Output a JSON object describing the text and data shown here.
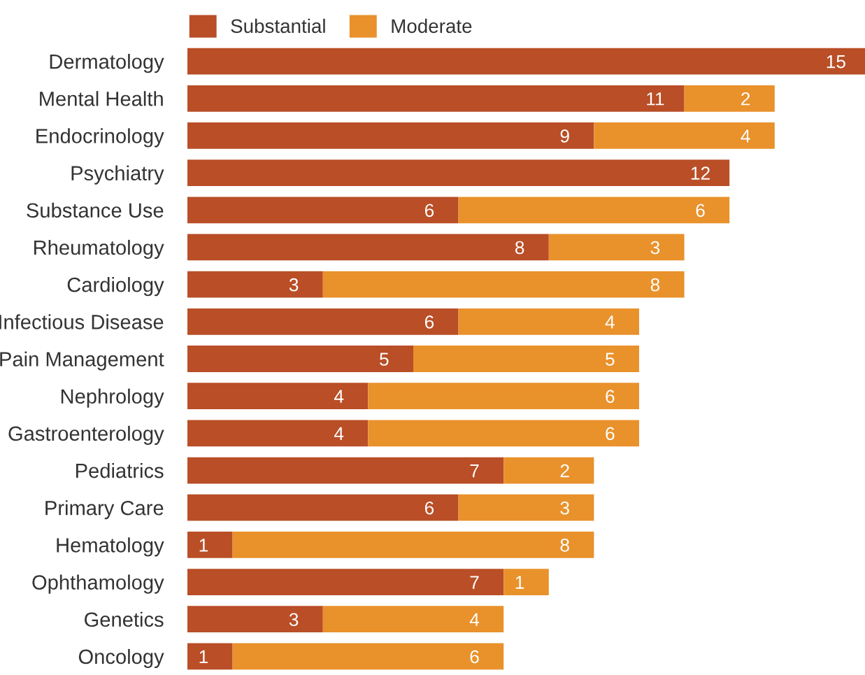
{
  "chart_data": {
    "type": "bar",
    "orientation": "horizontal",
    "stacked": true,
    "data_labels": true,
    "tick_labels": "y",
    "grid": false,
    "legend": "top left",
    "categories": [
      "Dermatology",
      "Mental Health",
      "Endocrinology",
      "Psychiatry",
      "Substance Use",
      "Rheumatology",
      "Cardiology",
      "Infectious Disease",
      "Pain Management",
      "Nephrology",
      "Gastroenterology",
      "Pediatrics",
      "Primary Care",
      "Hematology",
      "Ophthamology",
      "Genetics",
      "Oncology"
    ],
    "series": [
      {
        "name": "Substantial",
        "color": "#b94e27",
        "values": [
          15,
          11,
          9,
          12,
          6,
          8,
          3,
          6,
          5,
          4,
          4,
          7,
          6,
          1,
          7,
          3,
          1
        ]
      },
      {
        "name": "Moderate",
        "color": "#e9912b",
        "values": [
          null,
          2,
          4,
          null,
          6,
          3,
          8,
          4,
          5,
          6,
          6,
          2,
          3,
          8,
          1,
          4,
          6
        ]
      }
    ]
  }
}
